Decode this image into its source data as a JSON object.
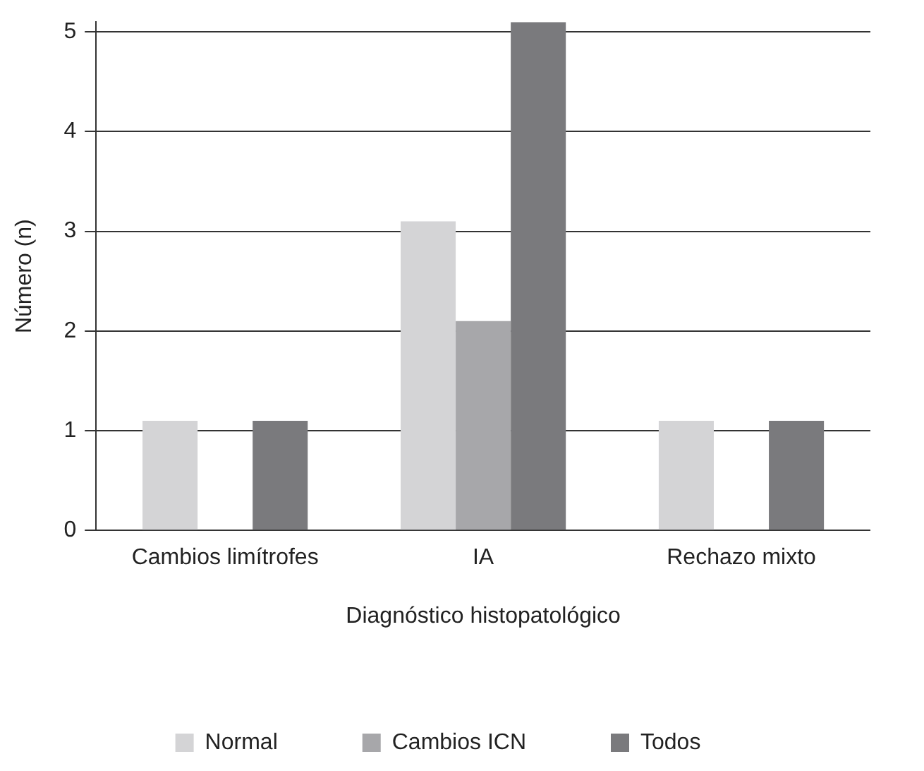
{
  "chart_data": {
    "type": "bar",
    "xlabel": "Diagnóstico histopatológico",
    "ylabel": "Número (n)",
    "categories": [
      "Cambios limítrofes",
      "IA",
      "Rechazo mixto"
    ],
    "series": [
      {
        "name": "Normal",
        "color": "#d4d4d6",
        "values": [
          1.1,
          3.1,
          1.1
        ]
      },
      {
        "name": "Cambios ICN",
        "color": "#a7a7aa",
        "values": [
          0,
          2.1,
          0
        ]
      },
      {
        "name": "Todos",
        "color": "#7a7a7d",
        "values": [
          1.1,
          5.1,
          1.1
        ]
      }
    ],
    "ylim": [
      0,
      5.1
    ],
    "yticks": [
      0,
      1,
      2,
      3,
      4,
      5
    ],
    "grid": "y",
    "legend": "bottom"
  }
}
